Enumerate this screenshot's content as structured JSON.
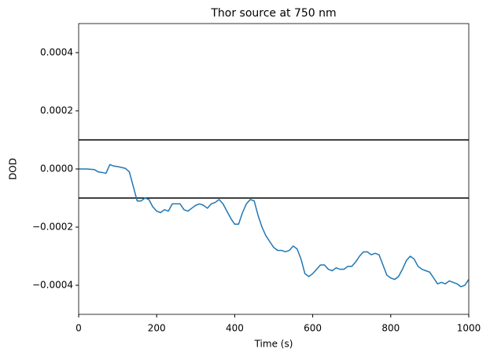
{
  "chart_data": {
    "type": "line",
    "title": "Thor source at 750 nm",
    "x_label": "Time (s)",
    "y_label": "DOD",
    "x": [
      0,
      10,
      20,
      30,
      40,
      50,
      60,
      70,
      80,
      90,
      100,
      110,
      120,
      130,
      140,
      150,
      160,
      170,
      180,
      190,
      200,
      210,
      220,
      230,
      240,
      250,
      260,
      270,
      280,
      290,
      300,
      310,
      320,
      330,
      340,
      350,
      360,
      370,
      380,
      390,
      400,
      410,
      420,
      430,
      440,
      450,
      460,
      470,
      480,
      490,
      500,
      510,
      520,
      530,
      540,
      550,
      560,
      570,
      580,
      590,
      600,
      610,
      620,
      630,
      640,
      650,
      660,
      670,
      680,
      690,
      700,
      710,
      720,
      730,
      740,
      750,
      760,
      770,
      780,
      790,
      800,
      810,
      820,
      830,
      840,
      850,
      860,
      870,
      880,
      890,
      900,
      910,
      920,
      930,
      940,
      950,
      960,
      970,
      980,
      990,
      1000
    ],
    "values": [
      0,
      0,
      0,
      -1e-06,
      -2e-06,
      -1e-05,
      -1.2e-05,
      -1.5e-05,
      1.5e-05,
      1e-05,
      8e-06,
      5e-06,
      2e-06,
      -1e-05,
      -6e-05,
      -0.00011,
      -0.00011,
      -0.0001,
      -0.000105,
      -0.00013,
      -0.000145,
      -0.00015,
      -0.00014,
      -0.000145,
      -0.00012,
      -0.00012,
      -0.00012,
      -0.00014,
      -0.000145,
      -0.000135,
      -0.000125,
      -0.00012,
      -0.000125,
      -0.000135,
      -0.00012,
      -0.000115,
      -0.000105,
      -0.00012,
      -0.000145,
      -0.00017,
      -0.00019,
      -0.00019,
      -0.00015,
      -0.00012,
      -0.000105,
      -0.00011,
      -0.00016,
      -0.0002,
      -0.00023,
      -0.00025,
      -0.00027,
      -0.00028,
      -0.00028,
      -0.000285,
      -0.00028,
      -0.000265,
      -0.000275,
      -0.00031,
      -0.00036,
      -0.00037,
      -0.00036,
      -0.000345,
      -0.00033,
      -0.00033,
      -0.000345,
      -0.00035,
      -0.00034,
      -0.000345,
      -0.000345,
      -0.000335,
      -0.000335,
      -0.00032,
      -0.0003,
      -0.000285,
      -0.000285,
      -0.000295,
      -0.00029,
      -0.000295,
      -0.00033,
      -0.000365,
      -0.000375,
      -0.00038,
      -0.00037,
      -0.000345,
      -0.000315,
      -0.0003,
      -0.00031,
      -0.000335,
      -0.000345,
      -0.00035,
      -0.000355,
      -0.000375,
      -0.000395,
      -0.00039,
      -0.000395,
      -0.000385,
      -0.00039,
      -0.000395,
      -0.000405,
      -0.0004,
      -0.00038
    ],
    "color": "#1f77b4",
    "hlines": [
      0.0001,
      -0.0001
    ],
    "hline_color": "#000000",
    "xlim": [
      0,
      1000
    ],
    "xticks": [
      0,
      200,
      400,
      600,
      800,
      1000
    ],
    "ylim": [
      -0.0005,
      0.0005
    ],
    "yticks": [
      {
        "value": -0.0004,
        "label": "−0.0004"
      },
      {
        "value": -0.0002,
        "label": "−0.0002"
      },
      {
        "value": 0,
        "label": "0.0000"
      },
      0.0002,
      0.0004
    ]
  }
}
